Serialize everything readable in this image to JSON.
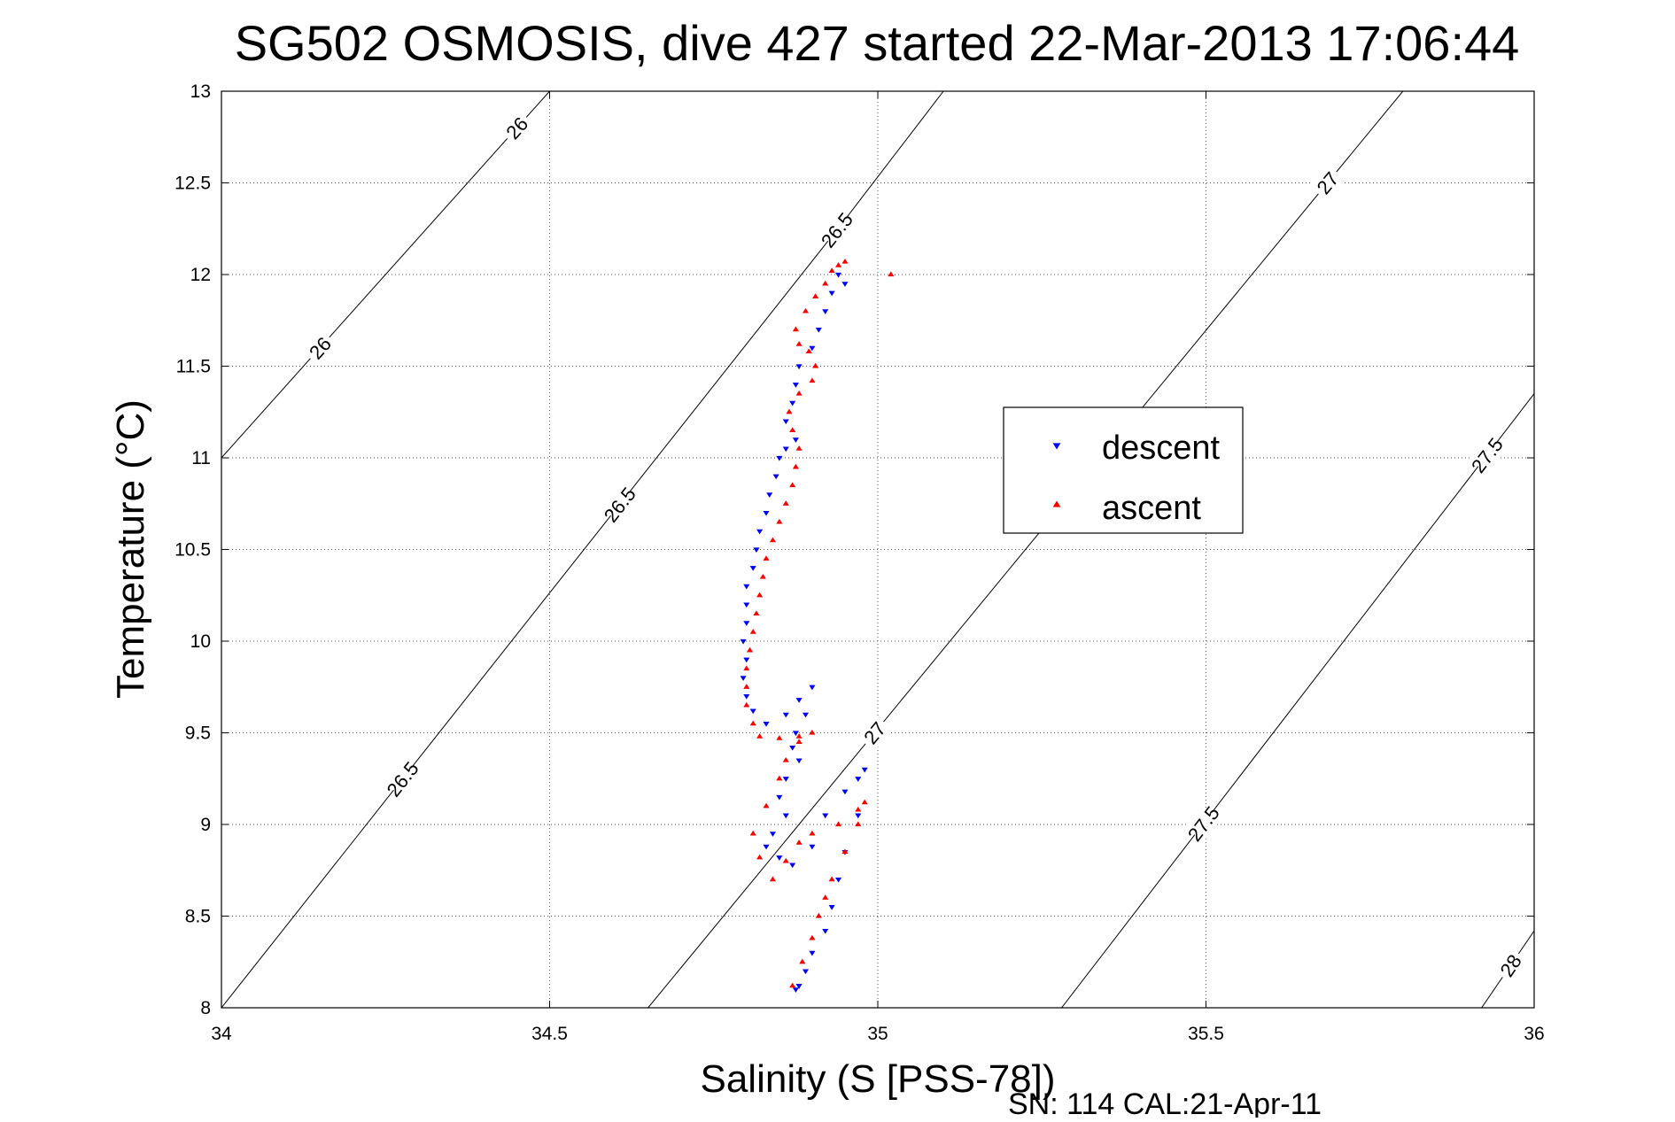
{
  "chart_data": {
    "type": "scatter",
    "title": "SG502 OSMOSIS, dive 427 started 22-Mar-2013 17:06:44",
    "xlabel": "Salinity (S [PSS-78])",
    "ylabel": "Temperature (°C)",
    "xlim": [
      34,
      36
    ],
    "ylim": [
      8,
      13
    ],
    "x_ticks": [
      "34",
      "34.5",
      "35",
      "35.5",
      "36"
    ],
    "y_ticks": [
      "8",
      "8.5",
      "9",
      "9.5",
      "10",
      "10.5",
      "11",
      "11.5",
      "12",
      "12.5",
      "13"
    ],
    "grid": true,
    "legend_position": "right",
    "footer": "SN: 114  CAL:21-Apr-11",
    "density_contours": [
      {
        "value": 26,
        "points": [
          [
            34.0,
            11.0
          ],
          [
            34.5,
            13.0
          ]
        ],
        "labels": [
          "26",
          "26"
        ]
      },
      {
        "value": 26.5,
        "points": [
          [
            34.0,
            8.0
          ],
          [
            34.95,
            12.3
          ],
          [
            35.1,
            13.0
          ]
        ],
        "labels": [
          "26.5",
          "26.5",
          "26.5"
        ]
      },
      {
        "value": 27,
        "points": [
          [
            34.65,
            8.0
          ],
          [
            35.8,
            13.0
          ]
        ],
        "labels": [
          "27",
          "27"
        ]
      },
      {
        "value": 27.5,
        "points": [
          [
            35.28,
            8.0
          ],
          [
            36.0,
            11.35
          ]
        ],
        "labels": [
          "27.5",
          "27.5"
        ]
      },
      {
        "value": 28,
        "points": [
          [
            35.92,
            8.0
          ],
          [
            36.0,
            8.42
          ]
        ],
        "labels": [
          "28"
        ]
      }
    ],
    "series": [
      {
        "name": "descent",
        "color": "#0000ff",
        "marker": "triangle-down",
        "points": [
          [
            34.94,
            12.0
          ],
          [
            34.95,
            11.95
          ],
          [
            34.93,
            11.9
          ],
          [
            34.92,
            11.8
          ],
          [
            34.91,
            11.7
          ],
          [
            34.9,
            11.6
          ],
          [
            34.88,
            11.5
          ],
          [
            34.875,
            11.4
          ],
          [
            34.87,
            11.3
          ],
          [
            34.86,
            11.2
          ],
          [
            34.875,
            11.1
          ],
          [
            34.86,
            11.05
          ],
          [
            34.85,
            11.0
          ],
          [
            34.845,
            10.9
          ],
          [
            34.835,
            10.8
          ],
          [
            34.83,
            10.7
          ],
          [
            34.82,
            10.6
          ],
          [
            34.815,
            10.5
          ],
          [
            34.81,
            10.4
          ],
          [
            34.8,
            10.3
          ],
          [
            34.8,
            10.2
          ],
          [
            34.8,
            10.1
          ],
          [
            34.795,
            10.0
          ],
          [
            34.8,
            9.9
          ],
          [
            34.795,
            9.8
          ],
          [
            34.8,
            9.7
          ],
          [
            34.81,
            9.62
          ],
          [
            34.83,
            9.55
          ],
          [
            34.86,
            9.6
          ],
          [
            34.88,
            9.68
          ],
          [
            34.9,
            9.75
          ],
          [
            34.89,
            9.6
          ],
          [
            34.875,
            9.5
          ],
          [
            34.87,
            9.42
          ],
          [
            34.88,
            9.35
          ],
          [
            34.86,
            9.25
          ],
          [
            34.85,
            9.15
          ],
          [
            34.86,
            9.05
          ],
          [
            34.84,
            8.95
          ],
          [
            34.83,
            8.88
          ],
          [
            34.85,
            8.82
          ],
          [
            34.87,
            8.78
          ],
          [
            34.9,
            8.88
          ],
          [
            34.92,
            9.05
          ],
          [
            34.95,
            9.18
          ],
          [
            34.97,
            9.25
          ],
          [
            34.98,
            9.3
          ],
          [
            34.97,
            9.05
          ],
          [
            34.95,
            8.85
          ],
          [
            34.94,
            8.7
          ],
          [
            34.93,
            8.55
          ],
          [
            34.92,
            8.42
          ],
          [
            34.9,
            8.3
          ],
          [
            34.89,
            8.2
          ],
          [
            34.88,
            8.12
          ],
          [
            34.875,
            8.1
          ]
        ]
      },
      {
        "name": "ascent",
        "color": "#ff0000",
        "marker": "triangle-up",
        "points": [
          [
            34.87,
            8.12
          ],
          [
            34.885,
            8.25
          ],
          [
            34.9,
            8.38
          ],
          [
            34.91,
            8.5
          ],
          [
            34.92,
            8.6
          ],
          [
            34.93,
            8.7
          ],
          [
            34.95,
            8.85
          ],
          [
            34.97,
            9.0
          ],
          [
            34.98,
            9.12
          ],
          [
            34.97,
            9.08
          ],
          [
            34.94,
            9.0
          ],
          [
            34.9,
            8.95
          ],
          [
            34.88,
            8.9
          ],
          [
            34.86,
            8.8
          ],
          [
            34.84,
            8.7
          ],
          [
            34.82,
            8.82
          ],
          [
            34.81,
            8.95
          ],
          [
            34.83,
            9.1
          ],
          [
            34.85,
            9.25
          ],
          [
            34.86,
            9.35
          ],
          [
            34.88,
            9.45
          ],
          [
            34.9,
            9.5
          ],
          [
            34.88,
            9.48
          ],
          [
            34.85,
            9.47
          ],
          [
            34.82,
            9.48
          ],
          [
            34.81,
            9.55
          ],
          [
            34.8,
            9.65
          ],
          [
            34.8,
            9.75
          ],
          [
            34.8,
            9.85
          ],
          [
            34.805,
            9.95
          ],
          [
            34.81,
            10.05
          ],
          [
            34.815,
            10.15
          ],
          [
            34.82,
            10.25
          ],
          [
            34.825,
            10.35
          ],
          [
            34.83,
            10.45
          ],
          [
            34.84,
            10.55
          ],
          [
            34.85,
            10.65
          ],
          [
            34.86,
            10.75
          ],
          [
            34.87,
            10.85
          ],
          [
            34.875,
            10.95
          ],
          [
            34.88,
            11.05
          ],
          [
            34.87,
            11.15
          ],
          [
            34.865,
            11.25
          ],
          [
            34.88,
            11.35
          ],
          [
            34.9,
            11.42
          ],
          [
            34.905,
            11.5
          ],
          [
            34.895,
            11.58
          ],
          [
            34.88,
            11.62
          ],
          [
            34.875,
            11.7
          ],
          [
            34.89,
            11.8
          ],
          [
            34.905,
            11.88
          ],
          [
            34.92,
            11.95
          ],
          [
            34.93,
            12.02
          ],
          [
            34.94,
            12.05
          ],
          [
            34.95,
            12.07
          ],
          [
            35.02,
            12.0
          ]
        ]
      }
    ]
  }
}
